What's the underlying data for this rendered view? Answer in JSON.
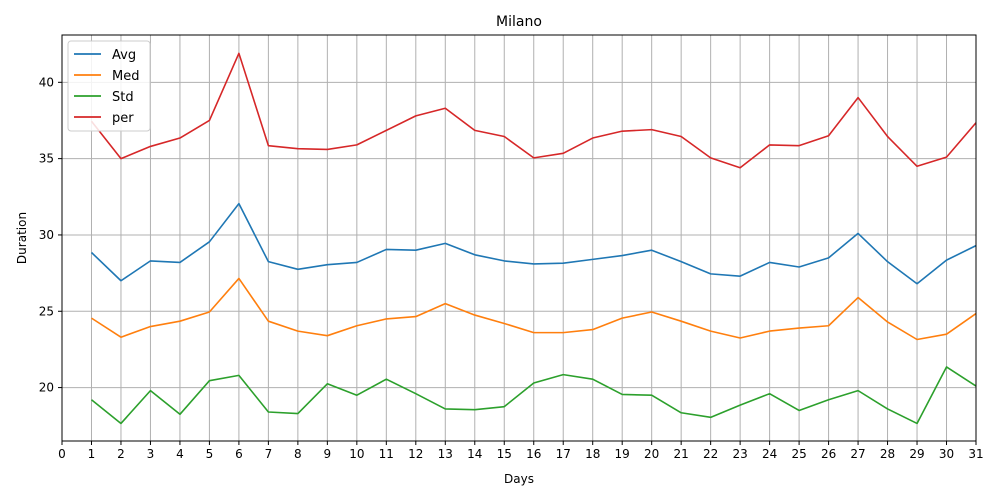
{
  "chart_data": {
    "type": "line",
    "title": "Milano",
    "xlabel": "Days",
    "ylabel": "Duration",
    "xlim": [
      0,
      31
    ],
    "ylim": [
      16.5,
      43.1
    ],
    "xticks": [
      0,
      1,
      2,
      3,
      4,
      5,
      6,
      7,
      8,
      9,
      10,
      11,
      12,
      13,
      14,
      15,
      16,
      17,
      18,
      19,
      20,
      21,
      22,
      23,
      24,
      25,
      26,
      27,
      28,
      29,
      30,
      31
    ],
    "yticks": [
      20,
      25,
      30,
      35,
      40
    ],
    "grid": "x-major vertical lines, y horizontal lines",
    "legend": "top-left",
    "x": [
      1,
      2,
      3,
      4,
      5,
      6,
      7,
      8,
      9,
      10,
      11,
      12,
      13,
      14,
      15,
      16,
      17,
      18,
      19,
      20,
      21,
      22,
      23,
      24,
      25,
      26,
      27,
      28,
      29,
      30,
      31
    ],
    "series": [
      {
        "name": "Avg",
        "color": "#1f77b4",
        "values": [
          28.85,
          27.0,
          28.3,
          28.2,
          29.55,
          32.05,
          28.25,
          27.75,
          28.05,
          28.2,
          29.05,
          29.0,
          29.45,
          28.7,
          28.3,
          28.1,
          28.15,
          28.4,
          28.65,
          29.0,
          28.25,
          27.45,
          27.3,
          28.2,
          27.9,
          28.5,
          30.1,
          28.25,
          26.8,
          28.35,
          29.3
        ]
      },
      {
        "name": "Med",
        "color": "#ff7f0e",
        "values": [
          24.55,
          23.3,
          24.0,
          24.35,
          24.95,
          27.15,
          24.35,
          23.7,
          23.4,
          24.05,
          24.5,
          24.65,
          25.5,
          24.75,
          24.2,
          23.6,
          23.6,
          23.8,
          24.55,
          24.95,
          24.35,
          23.7,
          23.25,
          23.7,
          23.9,
          24.05,
          25.9,
          24.3,
          23.15,
          23.5,
          24.85
        ]
      },
      {
        "name": "Std",
        "color": "#2ca02c",
        "values": [
          19.2,
          17.65,
          19.8,
          18.25,
          20.45,
          20.8,
          18.4,
          18.3,
          20.25,
          19.5,
          20.55,
          19.6,
          18.6,
          18.55,
          18.75,
          20.3,
          20.85,
          20.55,
          19.55,
          19.5,
          18.35,
          18.05,
          18.85,
          19.6,
          18.5,
          19.2,
          19.8,
          18.6,
          17.65,
          21.35,
          20.1
        ]
      },
      {
        "name": "per",
        "color": "#d62728",
        "values": [
          37.45,
          35.0,
          35.8,
          36.35,
          37.5,
          41.9,
          35.85,
          35.65,
          35.6,
          35.9,
          36.85,
          37.8,
          38.3,
          36.85,
          36.45,
          35.05,
          35.35,
          36.35,
          36.8,
          36.9,
          36.45,
          35.05,
          34.4,
          35.9,
          35.85,
          36.5,
          39.0,
          36.45,
          34.5,
          35.1,
          37.35
        ]
      }
    ]
  }
}
